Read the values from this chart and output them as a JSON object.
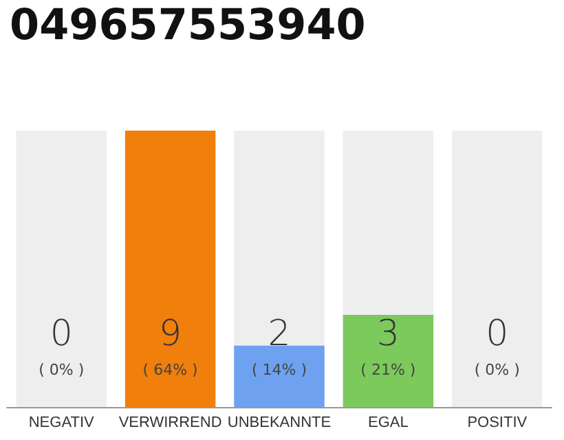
{
  "chart_data": {
    "type": "bar",
    "title": "049657553940",
    "categories": [
      "NEGATIV",
      "VERWIRREND",
      "UNBEKANNTE",
      "EGAL",
      "POSITIV"
    ],
    "series": [
      {
        "color": "#eeeeee",
        "values": [
          9,
          null,
          9,
          9,
          9
        ]
      },
      {
        "colors": [
          "#cccccc",
          "#f07f0c",
          "#6ea2f0",
          "#7cc95c",
          "#cccccc"
        ],
        "values": [
          0,
          9,
          2,
          3,
          0
        ],
        "value_labels": [
          "0\n( 0% )",
          "9\n( 64% )",
          "2\n( 14% )",
          "3\n( 21% )",
          "0\n( 0% )"
        ]
      }
    ],
    "ylim": [
      0,
      9
    ],
    "tick_labels": "x"
  }
}
